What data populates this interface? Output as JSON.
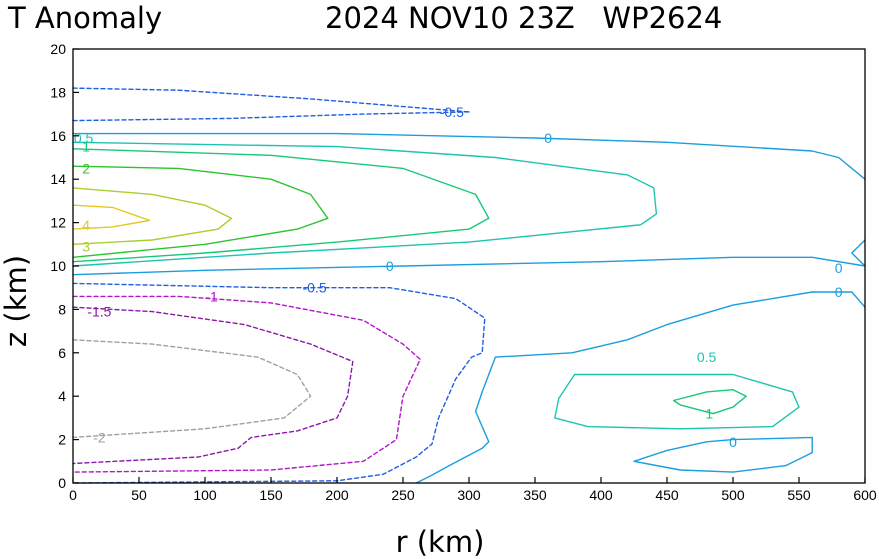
{
  "chart_data": {
    "type": "contour",
    "title": "T Anomaly",
    "subtitle": "2024 NOV10 23Z   WP2624",
    "xlabel": "r (km)",
    "ylabel": "z (km)",
    "xlim": [
      0,
      600
    ],
    "ylim": [
      0,
      20
    ],
    "xticks": [
      "0",
      "50",
      "100",
      "150",
      "200",
      "250",
      "300",
      "350",
      "400",
      "450",
      "500",
      "550",
      "600"
    ],
    "yticks": [
      "0",
      "2",
      "4",
      "6",
      "8",
      "10",
      "12",
      "14",
      "16",
      "18",
      "20"
    ],
    "colors": {
      "neg_0_5": "#1f5fe0",
      "zero": "#1a9ee0",
      "pos_0_5": "#1ec4b0",
      "pos_1": "#18c878",
      "pos_2": "#2ec42e",
      "pos_3": "#a8d030",
      "pos_4": "#e6c81e",
      "neg_1": "#b018c8",
      "neg_1_5": "#8a1aa8",
      "neg_2": "#a0a0a0"
    },
    "contours": [
      {
        "level": "-0.5",
        "color_key": "neg_0_5",
        "dashed": true,
        "points": [
          [
            0,
            18.2
          ],
          [
            80,
            18.1
          ],
          [
            180,
            17.7
          ],
          [
            280,
            17.2
          ],
          [
            300,
            17.1
          ]
        ]
      },
      {
        "level": "-0.5",
        "color_key": "neg_0_5",
        "dashed": true,
        "points": [
          [
            0,
            16.7
          ],
          [
            120,
            16.8
          ],
          [
            220,
            17.0
          ],
          [
            300,
            17.1
          ]
        ]
      },
      {
        "level": "0",
        "color_key": "zero",
        "dashed": false,
        "points": [
          [
            0,
            16.1
          ],
          [
            200,
            16.1
          ],
          [
            350,
            15.9
          ],
          [
            450,
            15.7
          ],
          [
            560,
            15.3
          ],
          [
            580,
            15.0
          ],
          [
            600,
            14.0
          ]
        ]
      },
      {
        "level": "0.5",
        "color_key": "pos_0_5",
        "dashed": false,
        "points": [
          [
            0,
            15.7
          ],
          [
            200,
            15.5
          ],
          [
            320,
            15.0
          ],
          [
            420,
            14.2
          ],
          [
            440,
            13.6
          ],
          [
            442,
            12.4
          ],
          [
            430,
            11.9
          ],
          [
            300,
            11.1
          ],
          [
            150,
            10.6
          ],
          [
            0,
            10.0
          ]
        ]
      },
      {
        "level": "1",
        "color_key": "pos_1",
        "dashed": false,
        "points": [
          [
            0,
            15.4
          ],
          [
            150,
            15.1
          ],
          [
            250,
            14.5
          ],
          [
            305,
            13.3
          ],
          [
            315,
            12.2
          ],
          [
            300,
            11.7
          ],
          [
            200,
            11.1
          ],
          [
            100,
            10.6
          ],
          [
            0,
            10.2
          ]
        ]
      },
      {
        "level": "2",
        "color_key": "pos_2",
        "dashed": false,
        "points": [
          [
            0,
            14.6
          ],
          [
            80,
            14.5
          ],
          [
            150,
            14.0
          ],
          [
            180,
            13.3
          ],
          [
            193,
            12.2
          ],
          [
            170,
            11.7
          ],
          [
            100,
            11.0
          ],
          [
            0,
            10.4
          ]
        ]
      },
      {
        "level": "3",
        "color_key": "pos_3",
        "dashed": false,
        "points": [
          [
            0,
            13.6
          ],
          [
            60,
            13.3
          ],
          [
            100,
            12.8
          ],
          [
            120,
            12.2
          ],
          [
            110,
            11.7
          ],
          [
            60,
            11.2
          ],
          [
            0,
            11.0
          ]
        ]
      },
      {
        "level": "4",
        "color_key": "pos_4",
        "dashed": false,
        "points": [
          [
            0,
            12.8
          ],
          [
            30,
            12.7
          ],
          [
            58,
            12.1
          ],
          [
            30,
            11.8
          ],
          [
            0,
            11.7
          ]
        ]
      },
      {
        "level": "0",
        "color_key": "zero",
        "dashed": false,
        "points": [
          [
            0,
            9.6
          ],
          [
            100,
            9.8
          ],
          [
            250,
            10.0
          ],
          [
            400,
            10.2
          ],
          [
            500,
            10.4
          ],
          [
            560,
            10.4
          ],
          [
            600,
            10.0
          ]
        ]
      },
      {
        "level": "0",
        "color_key": "zero",
        "dashed": false,
        "points": [
          [
            600,
            11.2
          ],
          [
            590,
            10.6
          ],
          [
            600,
            10.0
          ]
        ]
      },
      {
        "level": "-0.5",
        "color_key": "neg_0_5",
        "dashed": true,
        "points": [
          [
            0,
            9.2
          ],
          [
            150,
            9.0
          ],
          [
            240,
            9.0
          ],
          [
            290,
            8.5
          ],
          [
            312,
            7.6
          ],
          [
            310,
            6.0
          ],
          [
            302,
            5.8
          ],
          [
            290,
            4.8
          ],
          [
            277,
            3.0
          ],
          [
            272,
            1.8
          ],
          [
            260,
            1.2
          ],
          [
            235,
            0.4
          ],
          [
            200,
            0.1
          ],
          [
            0,
            0
          ]
        ]
      },
      {
        "level": "-1",
        "color_key": "neg_1",
        "dashed": true,
        "points": [
          [
            0,
            8.6
          ],
          [
            80,
            8.6
          ],
          [
            150,
            8.3
          ],
          [
            220,
            7.5
          ],
          [
            250,
            6.4
          ],
          [
            263,
            5.7
          ],
          [
            250,
            4.0
          ],
          [
            245,
            2.0
          ],
          [
            220,
            1.0
          ],
          [
            150,
            0.6
          ],
          [
            0,
            0.5
          ]
        ]
      },
      {
        "level": "-1.5",
        "color_key": "neg_1_5",
        "dashed": true,
        "points": [
          [
            0,
            8.1
          ],
          [
            60,
            7.9
          ],
          [
            130,
            7.3
          ],
          [
            180,
            6.4
          ],
          [
            212,
            5.6
          ],
          [
            208,
            4.0
          ],
          [
            200,
            3.0
          ],
          [
            170,
            2.4
          ],
          [
            135,
            2.1
          ],
          [
            125,
            1.6
          ],
          [
            95,
            1.2
          ],
          [
            0,
            0.9
          ]
        ]
      },
      {
        "level": "-2",
        "color_key": "neg_2",
        "dashed": true,
        "points": [
          [
            0,
            6.6
          ],
          [
            60,
            6.4
          ],
          [
            140,
            5.8
          ],
          [
            170,
            5.0
          ],
          [
            180,
            4.0
          ],
          [
            160,
            3.0
          ],
          [
            100,
            2.5
          ],
          [
            0,
            2.1
          ]
        ]
      },
      {
        "level": "0",
        "color_key": "zero",
        "dashed": false,
        "points": [
          [
            600,
            8.1
          ],
          [
            590,
            8.8
          ],
          [
            560,
            8.8
          ],
          [
            500,
            8.2
          ],
          [
            450,
            7.3
          ],
          [
            420,
            6.6
          ],
          [
            378,
            6.0
          ],
          [
            320,
            5.8
          ],
          [
            310,
            4.2
          ],
          [
            305,
            3.3
          ],
          [
            315,
            1.9
          ],
          [
            310,
            1.6
          ],
          [
            285,
            0.8
          ],
          [
            270,
            0.3
          ],
          [
            260,
            0
          ]
        ]
      },
      {
        "level": "0.5",
        "color_key": "pos_0_5",
        "dashed": false,
        "points": [
          [
            380,
            5.0
          ],
          [
            450,
            5.0
          ],
          [
            500,
            5.0
          ],
          [
            545,
            4.2
          ],
          [
            550,
            3.5
          ],
          [
            530,
            2.6
          ],
          [
            460,
            2.5
          ],
          [
            390,
            2.6
          ],
          [
            365,
            3.0
          ],
          [
            368,
            3.9
          ],
          [
            380,
            5.0
          ]
        ]
      },
      {
        "level": "1",
        "color_key": "pos_1",
        "dashed": false,
        "points": [
          [
            455,
            3.8
          ],
          [
            480,
            4.2
          ],
          [
            500,
            4.3
          ],
          [
            510,
            4.0
          ],
          [
            500,
            3.5
          ],
          [
            485,
            3.2
          ],
          [
            460,
            3.6
          ],
          [
            455,
            3.8
          ]
        ]
      },
      {
        "level": "0",
        "color_key": "zero",
        "dashed": false,
        "points": [
          [
            425,
            1.0
          ],
          [
            450,
            1.5
          ],
          [
            480,
            1.9
          ],
          [
            500,
            2.0
          ],
          [
            560,
            2.1
          ],
          [
            560,
            1.4
          ],
          [
            540,
            0.8
          ],
          [
            500,
            0.5
          ],
          [
            460,
            0.6
          ],
          [
            425,
            1.0
          ]
        ]
      }
    ],
    "contour_labels": [
      {
        "text": "-0.5",
        "x": 287,
        "y": 17.1,
        "color_key": "neg_0_5"
      },
      {
        "text": "0.5",
        "x": 8,
        "y": 15.9,
        "color_key": "pos_0_5"
      },
      {
        "text": "1",
        "x": 10,
        "y": 15.5,
        "color_key": "pos_1"
      },
      {
        "text": "2",
        "x": 10,
        "y": 14.5,
        "color_key": "pos_2"
      },
      {
        "text": "4",
        "x": 10,
        "y": 11.9,
        "color_key": "pos_4"
      },
      {
        "text": "3",
        "x": 10,
        "y": 10.9,
        "color_key": "pos_3"
      },
      {
        "text": "0",
        "x": 360,
        "y": 15.9,
        "color_key": "zero"
      },
      {
        "text": "0",
        "x": 240,
        "y": 10.0,
        "color_key": "zero"
      },
      {
        "text": "0",
        "x": 580,
        "y": 9.9,
        "color_key": "zero"
      },
      {
        "text": "0",
        "x": 580,
        "y": 8.8,
        "color_key": "zero"
      },
      {
        "text": "-0.5",
        "x": 183,
        "y": 9.0,
        "color_key": "neg_0_5"
      },
      {
        "text": "-1",
        "x": 105,
        "y": 8.6,
        "color_key": "neg_1"
      },
      {
        "text": "-1.5",
        "x": 20,
        "y": 7.9,
        "color_key": "neg_1_5"
      },
      {
        "text": "-2",
        "x": 20,
        "y": 2.1,
        "color_key": "neg_2"
      },
      {
        "text": "0.5",
        "x": 480,
        "y": 5.8,
        "color_key": "pos_0_5"
      },
      {
        "text": "1",
        "x": 482,
        "y": 3.2,
        "color_key": "pos_1"
      },
      {
        "text": "0",
        "x": 500,
        "y": 1.9,
        "color_key": "zero"
      }
    ]
  }
}
